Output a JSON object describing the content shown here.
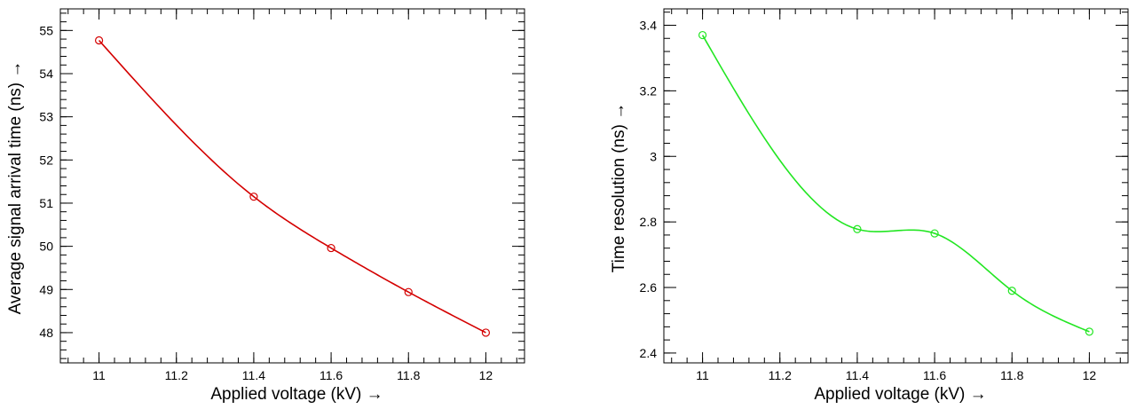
{
  "chart_data": [
    {
      "type": "line",
      "title": "",
      "xlabel": "Applied voltage (kV) →",
      "ylabel": "Average signal arrival time (ns) →",
      "xlim": [
        10.9,
        12.1
      ],
      "ylim": [
        47.3,
        55.5
      ],
      "xticks": [
        11,
        11.2,
        11.4,
        11.6,
        11.8,
        12
      ],
      "xtick_labels": [
        "11",
        "11.2",
        "11.4",
        "11.6",
        "11.8",
        "12"
      ],
      "yticks": [
        48,
        49,
        50,
        51,
        52,
        53,
        54,
        55
      ],
      "ytick_labels": [
        "48",
        "49",
        "50",
        "51",
        "52",
        "53",
        "54",
        "55"
      ],
      "grid": false,
      "color": "#d40000",
      "marker": "open-circle",
      "series": [
        {
          "x": [
            11.0,
            11.4,
            11.6,
            11.8,
            12.0
          ],
          "y": [
            54.77,
            51.15,
            49.96,
            48.94,
            48.0
          ]
        }
      ]
    },
    {
      "type": "line",
      "title": "",
      "xlabel": "Applied voltage (kV) →",
      "ylabel": "Time resolution (ns) →",
      "xlim": [
        10.9,
        12.1
      ],
      "ylim": [
        2.37,
        3.45
      ],
      "xticks": [
        11,
        11.2,
        11.4,
        11.6,
        11.8,
        12
      ],
      "xtick_labels": [
        "11",
        "11.2",
        "11.4",
        "11.6",
        "11.8",
        "12"
      ],
      "yticks": [
        2.4,
        2.6,
        2.8,
        3.0,
        3.2,
        3.4
      ],
      "ytick_labels": [
        "2.4",
        "2.6",
        "2.8",
        "3",
        "3.2",
        "3.4"
      ],
      "grid": false,
      "color": "#22e622",
      "marker": "open-circle",
      "series": [
        {
          "x": [
            11.0,
            11.4,
            11.6,
            11.8,
            12.0
          ],
          "y": [
            3.37,
            2.778,
            2.765,
            2.59,
            2.465
          ]
        }
      ]
    }
  ]
}
